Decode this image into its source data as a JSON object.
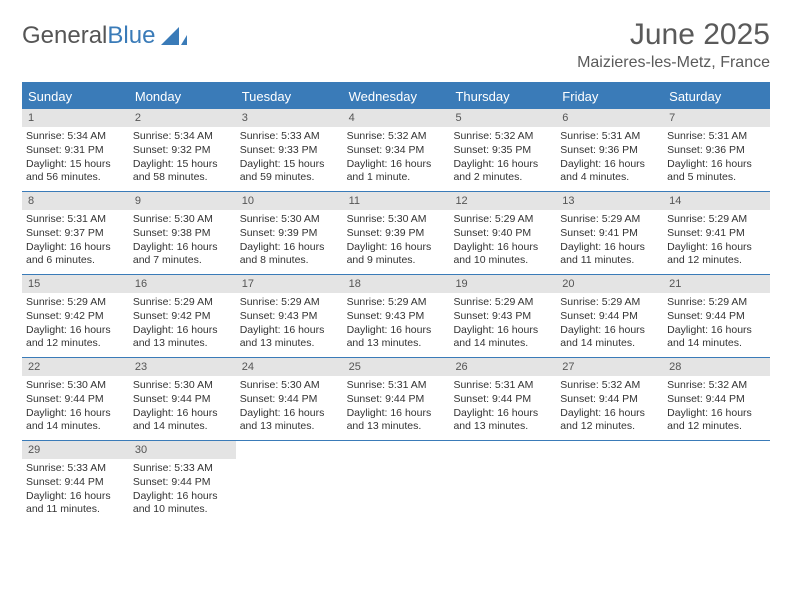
{
  "logo": {
    "part1": "General",
    "part2": "Blue"
  },
  "title": "June 2025",
  "location": "Maizieres-les-Metz, France",
  "colors": {
    "accent": "#3a7bb8",
    "day_num_bg": "#e4e4e4",
    "text": "#333333",
    "muted": "#5a5a5a",
    "bg": "#ffffff"
  },
  "typography": {
    "title_fontsize": 30,
    "location_fontsize": 16,
    "header_fontsize": 13,
    "cell_fontsize": 10.5
  },
  "layout": {
    "columns": 7,
    "rows": 5
  },
  "day_headers": [
    "Sunday",
    "Monday",
    "Tuesday",
    "Wednesday",
    "Thursday",
    "Friday",
    "Saturday"
  ],
  "days": [
    {
      "n": "1",
      "sr": "5:34 AM",
      "ss": "9:31 PM",
      "dl": "15 hours and 56 minutes."
    },
    {
      "n": "2",
      "sr": "5:34 AM",
      "ss": "9:32 PM",
      "dl": "15 hours and 58 minutes."
    },
    {
      "n": "3",
      "sr": "5:33 AM",
      "ss": "9:33 PM",
      "dl": "15 hours and 59 minutes."
    },
    {
      "n": "4",
      "sr": "5:32 AM",
      "ss": "9:34 PM",
      "dl": "16 hours and 1 minute."
    },
    {
      "n": "5",
      "sr": "5:32 AM",
      "ss": "9:35 PM",
      "dl": "16 hours and 2 minutes."
    },
    {
      "n": "6",
      "sr": "5:31 AM",
      "ss": "9:36 PM",
      "dl": "16 hours and 4 minutes."
    },
    {
      "n": "7",
      "sr": "5:31 AM",
      "ss": "9:36 PM",
      "dl": "16 hours and 5 minutes."
    },
    {
      "n": "8",
      "sr": "5:31 AM",
      "ss": "9:37 PM",
      "dl": "16 hours and 6 minutes."
    },
    {
      "n": "9",
      "sr": "5:30 AM",
      "ss": "9:38 PM",
      "dl": "16 hours and 7 minutes."
    },
    {
      "n": "10",
      "sr": "5:30 AM",
      "ss": "9:39 PM",
      "dl": "16 hours and 8 minutes."
    },
    {
      "n": "11",
      "sr": "5:30 AM",
      "ss": "9:39 PM",
      "dl": "16 hours and 9 minutes."
    },
    {
      "n": "12",
      "sr": "5:29 AM",
      "ss": "9:40 PM",
      "dl": "16 hours and 10 minutes."
    },
    {
      "n": "13",
      "sr": "5:29 AM",
      "ss": "9:41 PM",
      "dl": "16 hours and 11 minutes."
    },
    {
      "n": "14",
      "sr": "5:29 AM",
      "ss": "9:41 PM",
      "dl": "16 hours and 12 minutes."
    },
    {
      "n": "15",
      "sr": "5:29 AM",
      "ss": "9:42 PM",
      "dl": "16 hours and 12 minutes."
    },
    {
      "n": "16",
      "sr": "5:29 AM",
      "ss": "9:42 PM",
      "dl": "16 hours and 13 minutes."
    },
    {
      "n": "17",
      "sr": "5:29 AM",
      "ss": "9:43 PM",
      "dl": "16 hours and 13 minutes."
    },
    {
      "n": "18",
      "sr": "5:29 AM",
      "ss": "9:43 PM",
      "dl": "16 hours and 13 minutes."
    },
    {
      "n": "19",
      "sr": "5:29 AM",
      "ss": "9:43 PM",
      "dl": "16 hours and 14 minutes."
    },
    {
      "n": "20",
      "sr": "5:29 AM",
      "ss": "9:44 PM",
      "dl": "16 hours and 14 minutes."
    },
    {
      "n": "21",
      "sr": "5:29 AM",
      "ss": "9:44 PM",
      "dl": "16 hours and 14 minutes."
    },
    {
      "n": "22",
      "sr": "5:30 AM",
      "ss": "9:44 PM",
      "dl": "16 hours and 14 minutes."
    },
    {
      "n": "23",
      "sr": "5:30 AM",
      "ss": "9:44 PM",
      "dl": "16 hours and 14 minutes."
    },
    {
      "n": "24",
      "sr": "5:30 AM",
      "ss": "9:44 PM",
      "dl": "16 hours and 13 minutes."
    },
    {
      "n": "25",
      "sr": "5:31 AM",
      "ss": "9:44 PM",
      "dl": "16 hours and 13 minutes."
    },
    {
      "n": "26",
      "sr": "5:31 AM",
      "ss": "9:44 PM",
      "dl": "16 hours and 13 minutes."
    },
    {
      "n": "27",
      "sr": "5:32 AM",
      "ss": "9:44 PM",
      "dl": "16 hours and 12 minutes."
    },
    {
      "n": "28",
      "sr": "5:32 AM",
      "ss": "9:44 PM",
      "dl": "16 hours and 12 minutes."
    },
    {
      "n": "29",
      "sr": "5:33 AM",
      "ss": "9:44 PM",
      "dl": "16 hours and 11 minutes."
    },
    {
      "n": "30",
      "sr": "5:33 AM",
      "ss": "9:44 PM",
      "dl": "16 hours and 10 minutes."
    }
  ],
  "labels": {
    "sunrise": "Sunrise:",
    "sunset": "Sunset:",
    "daylight": "Daylight:"
  }
}
